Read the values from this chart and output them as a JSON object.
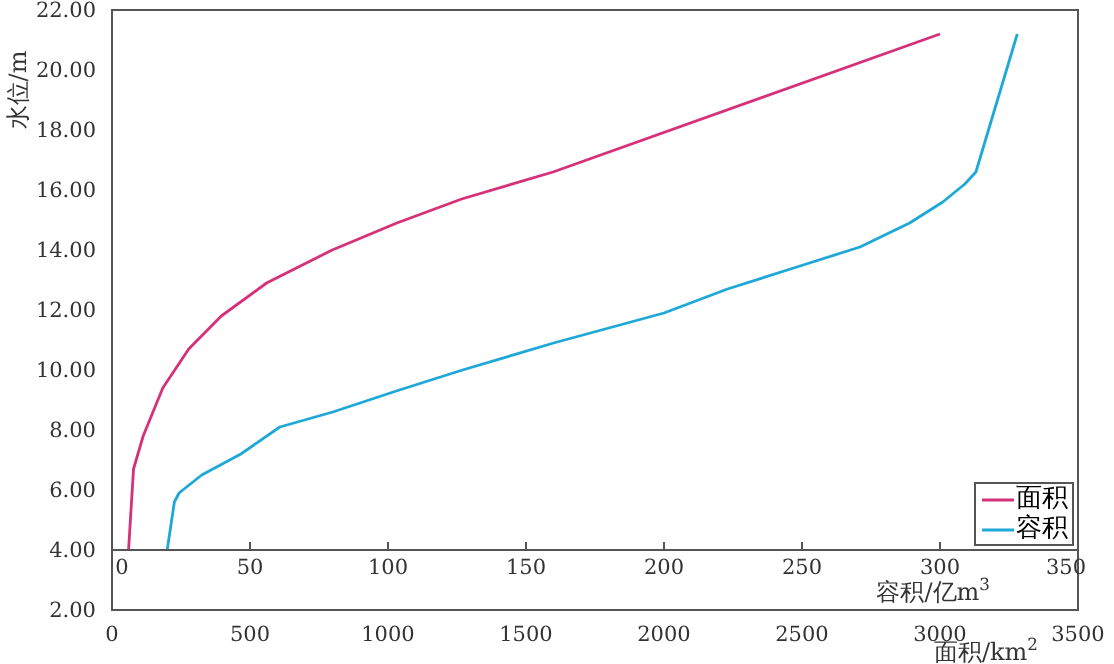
{
  "chart_data": {
    "type": "line",
    "xlabel": "面积/km$^{2}$",
    "x2label": "容积/亿m$^{3}$",
    "ylabel": "水位/m",
    "xlim": [
      0,
      3500
    ],
    "xticks": [
      0,
      500,
      1000,
      1500,
      2000,
      2500,
      3000,
      3500
    ],
    "x2lim": [
      0,
      350
    ],
    "x2ticks": [
      0,
      50,
      100,
      150,
      200,
      250,
      300,
      350
    ],
    "ylim": [
      2,
      22
    ],
    "yticks": [
      {
        "value": 2,
        "label": "2.00"
      },
      {
        "value": 4,
        "label": "4.00"
      },
      {
        "value": 6,
        "label": "6.00"
      },
      {
        "value": 8,
        "label": "8.00"
      },
      {
        "value": 10,
        "label": "10.00"
      },
      {
        "value": 12,
        "label": "12.00"
      },
      {
        "value": 14,
        "label": "14.00"
      },
      {
        "value": 16,
        "label": "16.00"
      },
      {
        "value": 18,
        "label": "18.00"
      },
      {
        "value": 20,
        "label": "20.00"
      },
      {
        "value": 22,
        "label": "22.00"
      }
    ],
    "grid": false,
    "legend": "bottom right",
    "marker": "none",
    "line_style": "solid",
    "series": [
      {
        "name": "面积",
        "color": "#d6307a",
        "x": [
          60,
          78,
          113,
          184,
          278,
          396,
          560,
          798,
          1032,
          1267,
          1598,
          3000
        ],
        "values": [
          4,
          6.7,
          7.8,
          9.4,
          10.7,
          11.8,
          12.9,
          14.0,
          14.9,
          15.7,
          16.6,
          21.2
        ]
      },
      {
        "name": "容积",
        "color": "#1ea8d8",
        "axis": "x2",
        "x": [
          20,
          22.6,
          24.3,
          32.5,
          46.7,
          60.8,
          80,
          103,
          127,
          160,
          200,
          223,
          247,
          271,
          289,
          301,
          309,
          313,
          328
        ],
        "values": [
          4,
          5.6,
          5.9,
          6.5,
          7.2,
          8.1,
          8.6,
          9.3,
          10.0,
          10.9,
          11.9,
          12.7,
          13.4,
          14.1,
          14.9,
          15.6,
          16.2,
          16.6,
          21.2
        ]
      }
    ]
  }
}
